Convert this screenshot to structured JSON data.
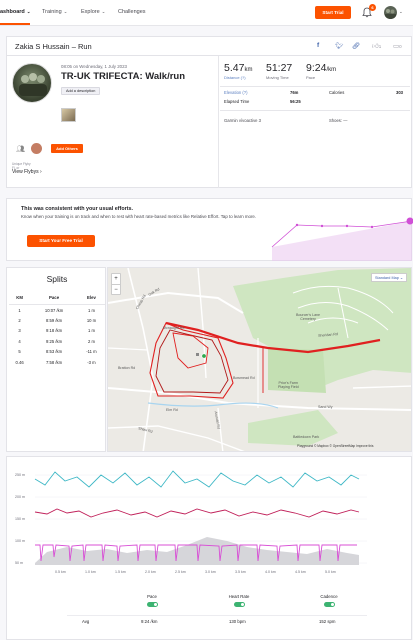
{
  "nav": {
    "items": [
      {
        "label": "ashboard",
        "chev": "⌄"
      },
      {
        "label": "Training",
        "chev": "⌄"
      },
      {
        "label": "Explore",
        "chev": "⌄"
      },
      {
        "label": "Challenges",
        "chev": ""
      }
    ],
    "trial_button": "Start Trial",
    "notification_count": "6",
    "accent": "#fc5200"
  },
  "activity": {
    "header_title": "Zakia S Hussain – Run",
    "kudos_count": "1",
    "comments_count": "0",
    "date": "08:05 on Wednesday, 1 July 2023",
    "title": "TR-UK TRIFECTA: Walk/run",
    "add_description": "Add a description",
    "add_others": "Add Others",
    "flyby_small": [
      "Unique Flyby",
      "Fl. or"
    ],
    "flyby_link": "View Flybys",
    "flyby_chev": "›",
    "stats": {
      "distance": {
        "value": "5.47",
        "unit": "km",
        "label": "Distance (?)"
      },
      "moving_time": {
        "value": "51:27",
        "label": "Moving Time"
      },
      "pace": {
        "value": "9:24",
        "unit": "/km",
        "label": "Pace"
      }
    },
    "details": {
      "elevation_label": "Elevation (?)",
      "elevation_value": "76m",
      "calories_label": "Calories",
      "calories_value": "303",
      "elapsed_label": "Elapsed Time",
      "elapsed_value": "56:25"
    },
    "device": "Garmin vívoactive 3",
    "shoes": "Shoes: —"
  },
  "banner": {
    "title": "This was consistent with your usual efforts.",
    "text": "Know when your training is on track and when to rest with heart rate-based metrics like Relative Effort. Tap to learn more.",
    "button": "Start Your Free Trial",
    "accent": "#d04fd6"
  },
  "splits": {
    "title": "Splits",
    "headers": [
      "KM",
      "Pace",
      "Elev"
    ],
    "rows": [
      [
        "1",
        "10:07 /km",
        "1 m"
      ],
      [
        "2",
        "8:59 /km",
        "10 m"
      ],
      [
        "3",
        "9:18 /km",
        "1 m"
      ],
      [
        "4",
        "9:25 /km",
        "2 m"
      ],
      [
        "5",
        "8:53 /km",
        "-11 m"
      ],
      [
        "0.46",
        "7:58 /km",
        "-3 m"
      ]
    ]
  },
  "map": {
    "zoom_in": "+",
    "zoom_out": "−",
    "style_button": "Standard Map ⌄",
    "labels": {
      "cemetery": [
        "Bourcer's Lane",
        "Cemetery"
      ],
      "playing_field": [
        "Prior's Farm",
        "Playing Field"
      ],
      "park": [
        "Battledown Park"
      ],
      "road_1": "Cheap Rd",
      "road_2": "Oak Rd",
      "road_3": "Bratton Rd",
      "road_4": "Elm Rd",
      "road_5": "Shaw Rd",
      "road_6": "Arundel Rd",
      "road_7": "Mcnaught Rd",
      "road_8": "Sheridan Rd",
      "road_9": "Bowmead Rd",
      "road_10": "Sand Wy"
    },
    "attribution": "Playground © Mapbox © OpenStreetMap Improve this",
    "route_color": "#e02020"
  },
  "chart": {
    "y_labels": [
      "250 m",
      "200 m",
      "150 m",
      "100 m",
      "50 m"
    ],
    "x_labels": [
      "0.5 km",
      "1.0 km",
      "1.5 km",
      "2.0 km",
      "2.5 km",
      "3.0 km",
      "3.5 km",
      "4.0 km",
      "4.5 km",
      "5.0 km"
    ],
    "colors": {
      "pace": "#3fb8c6",
      "heart_rate": "#c0205a",
      "cadence": "#d84fd6",
      "elevation": "#c8c8cc"
    },
    "toggles": [
      {
        "label": "Pace",
        "on": true
      },
      {
        "label": "Heart Rate",
        "on": true
      },
      {
        "label": "Cadence",
        "on": true
      }
    ],
    "avg_label": "Avg",
    "avg": {
      "pace": "9:24 /km",
      "heart_rate": "130 bpm",
      "cadence": "152 spm"
    }
  }
}
